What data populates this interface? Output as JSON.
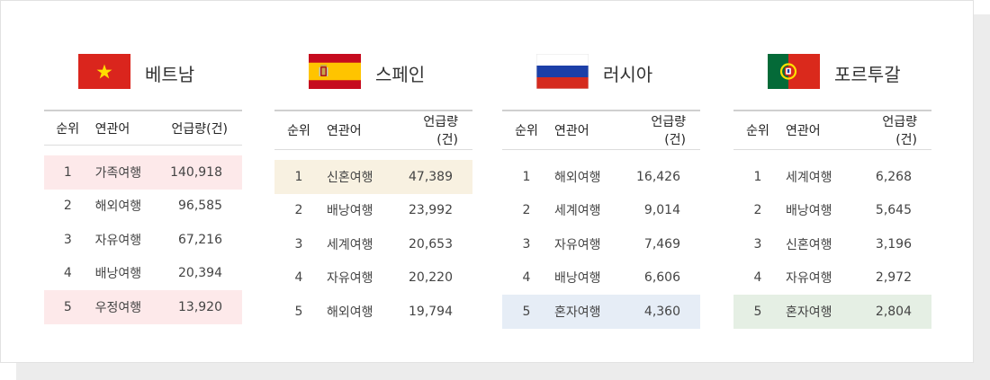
{
  "columns": {
    "rank": "순위",
    "keyword": "연관어",
    "count": "언급량(건)"
  },
  "countries": [
    {
      "name": "베트남",
      "flag": "vietnam-flag",
      "highlight_colors": [
        "#fde9ea",
        "#fde9ea"
      ],
      "rows": [
        {
          "rank": "1",
          "keyword": "가족여행",
          "count": "140,918",
          "highlight": true
        },
        {
          "rank": "2",
          "keyword": "해외여행",
          "count": "96,585",
          "highlight": false
        },
        {
          "rank": "3",
          "keyword": "자유여행",
          "count": "67,216",
          "highlight": false
        },
        {
          "rank": "4",
          "keyword": "배낭여행",
          "count": "20,394",
          "highlight": false
        },
        {
          "rank": "5",
          "keyword": "우정여행",
          "count": "13,920",
          "highlight": true
        }
      ]
    },
    {
      "name": "스페인",
      "flag": "spain-flag",
      "highlight_colors": [
        "#f8f1e1"
      ],
      "rows": [
        {
          "rank": "1",
          "keyword": "신혼여행",
          "count": "47,389",
          "highlight": true
        },
        {
          "rank": "2",
          "keyword": "배낭여행",
          "count": "23,992",
          "highlight": false
        },
        {
          "rank": "3",
          "keyword": "세계여행",
          "count": "20,653",
          "highlight": false
        },
        {
          "rank": "4",
          "keyword": "자유여행",
          "count": "20,220",
          "highlight": false
        },
        {
          "rank": "5",
          "keyword": "해외여행",
          "count": "19,794",
          "highlight": false
        }
      ]
    },
    {
      "name": "러시아",
      "flag": "russia-flag",
      "highlight_colors": [
        "#e6edf6"
      ],
      "rows": [
        {
          "rank": "1",
          "keyword": "해외여행",
          "count": "16,426",
          "highlight": false
        },
        {
          "rank": "2",
          "keyword": "세계여행",
          "count": "9,014",
          "highlight": false
        },
        {
          "rank": "3",
          "keyword": "자유여행",
          "count": "7,469",
          "highlight": false
        },
        {
          "rank": "4",
          "keyword": "배낭여행",
          "count": "6,606",
          "highlight": false
        },
        {
          "rank": "5",
          "keyword": "혼자여행",
          "count": "4,360",
          "highlight": true
        }
      ]
    },
    {
      "name": "포르투갈",
      "flag": "portugal-flag",
      "highlight_colors": [
        "#e5efe4"
      ],
      "rows": [
        {
          "rank": "1",
          "keyword": "세계여행",
          "count": "6,268",
          "highlight": false
        },
        {
          "rank": "2",
          "keyword": "배낭여행",
          "count": "5,645",
          "highlight": false
        },
        {
          "rank": "3",
          "keyword": "신혼여행",
          "count": "3,196",
          "highlight": false
        },
        {
          "rank": "4",
          "keyword": "자유여행",
          "count": "2,972",
          "highlight": false
        },
        {
          "rank": "5",
          "keyword": "혼자여행",
          "count": "2,804",
          "highlight": true
        }
      ]
    }
  ]
}
